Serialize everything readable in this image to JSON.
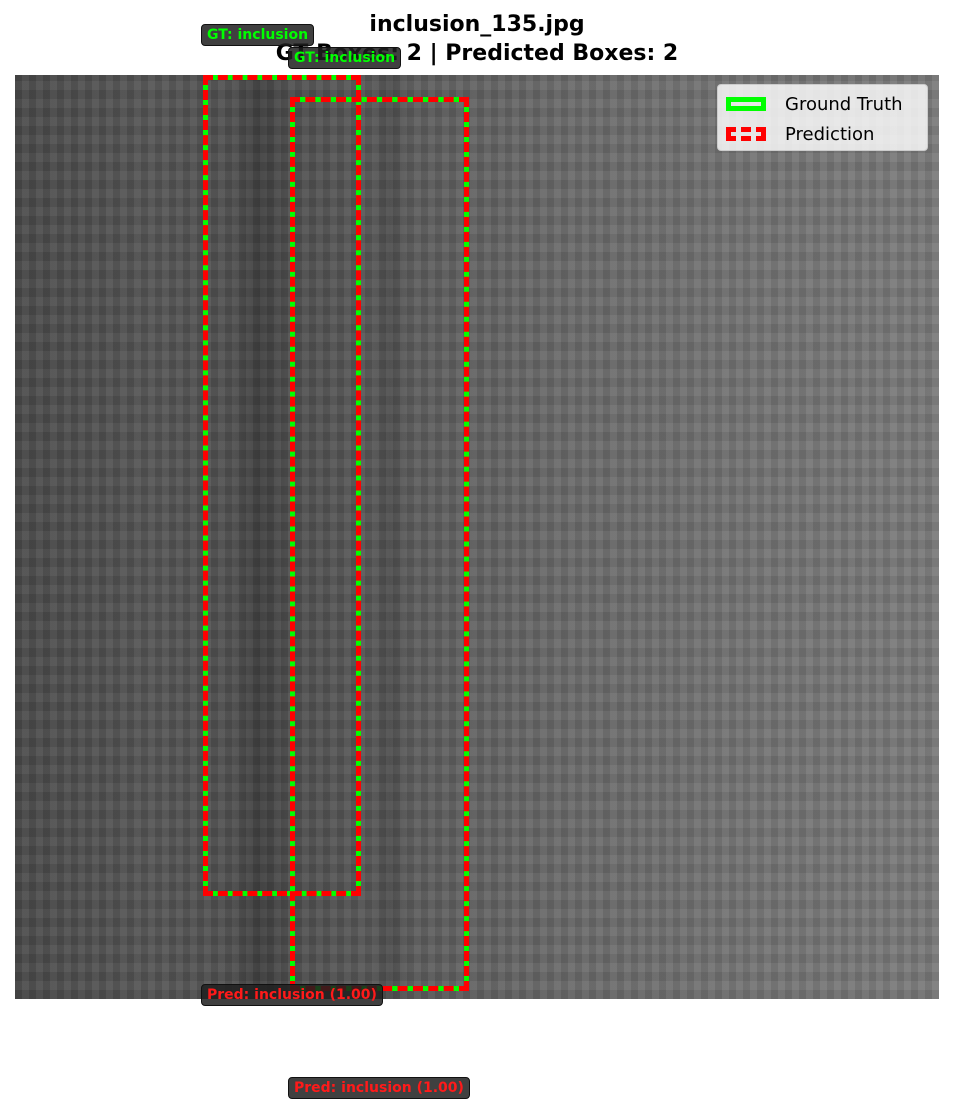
{
  "figure": {
    "title": "inclusion_135.jpg",
    "subtitle": "GT Boxes: 2 | Predicted Boxes: 2"
  },
  "legend": {
    "gt_label": "Ground Truth",
    "pred_label": "Prediction",
    "gt_color": "#00ff00",
    "pred_color": "#ff0000"
  },
  "annotations": {
    "gt_labels": [
      "GT: inclusion",
      "GT: inclusion"
    ],
    "pred_labels": [
      "Pred: inclusion (1.00)",
      "Pred: inclusion (1.00)"
    ],
    "gt_count": 2,
    "pred_count": 2
  }
}
